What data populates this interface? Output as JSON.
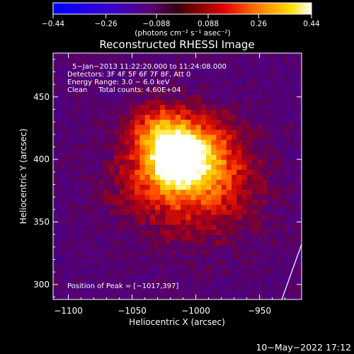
{
  "chart_data": {
    "type": "heatmap",
    "title": "Reconstructed RHESSI Image",
    "xlabel": "Heliocentric X (arcsec)",
    "ylabel": "Heliocentric Y (arcsec)",
    "xlim": [
      -1112,
      -917
    ],
    "ylim": [
      288,
      485
    ],
    "x_ticks": [
      -1100,
      -1050,
      -1000,
      -950
    ],
    "x_tick_labels": [
      "−1100",
      "−1050",
      "−1000",
      "−950"
    ],
    "y_ticks": [
      300,
      350,
      400,
      450
    ],
    "y_tick_labels": [
      "300",
      "350",
      "400",
      "450"
    ],
    "colorbar": {
      "range": [
        -0.44,
        0.44
      ],
      "ticks": [
        -0.44,
        -0.26,
        -0.088,
        0.088,
        0.26,
        0.44
      ],
      "tick_labels": [
        "−0.44",
        "−0.26",
        "−0.088",
        "0.088",
        "0.26",
        "0.44"
      ],
      "units": "(photons cm⁻² s⁻¹ asec⁻²)"
    },
    "annotations": [
      "5−Jan−2013 11:22:20.000 to 11:24:08.000",
      "Detectors: 3F 4F 5F 6F 7F 8F, Att 0",
      "Energy Range: 3.0 − 6.0 keV",
      "Clean     Total counts: 4.60E+04"
    ],
    "peak_label": "Position of Peak = [−1017,397]",
    "peak": {
      "x": -1017,
      "y": 397
    },
    "sources": [
      {
        "x": -1017,
        "y": 397,
        "amplitude": 0.44,
        "sigma": 12
      },
      {
        "x": -1030,
        "y": 420,
        "amplitude": 0.28,
        "sigma": 16
      },
      {
        "x": -1000,
        "y": 405,
        "amplitude": 0.22,
        "sigma": 20
      },
      {
        "x": -1012,
        "y": 385,
        "amplitude": 0.2,
        "sigma": 30
      },
      {
        "x": -985,
        "y": 375,
        "amplitude": 0.12,
        "sigma": 30
      },
      {
        "x": -1045,
        "y": 380,
        "amplitude": 0.1,
        "sigma": 22
      }
    ],
    "background": -0.1,
    "pixel_size_arcsec": 4,
    "colors": [
      "#00008b",
      "#3a0080",
      "#7a008a",
      "#c3002a",
      "#ff3c00",
      "#ff9800",
      "#ffd400",
      "#ffffff"
    ]
  },
  "footer": {
    "date": "10−May−2022 17:12"
  }
}
